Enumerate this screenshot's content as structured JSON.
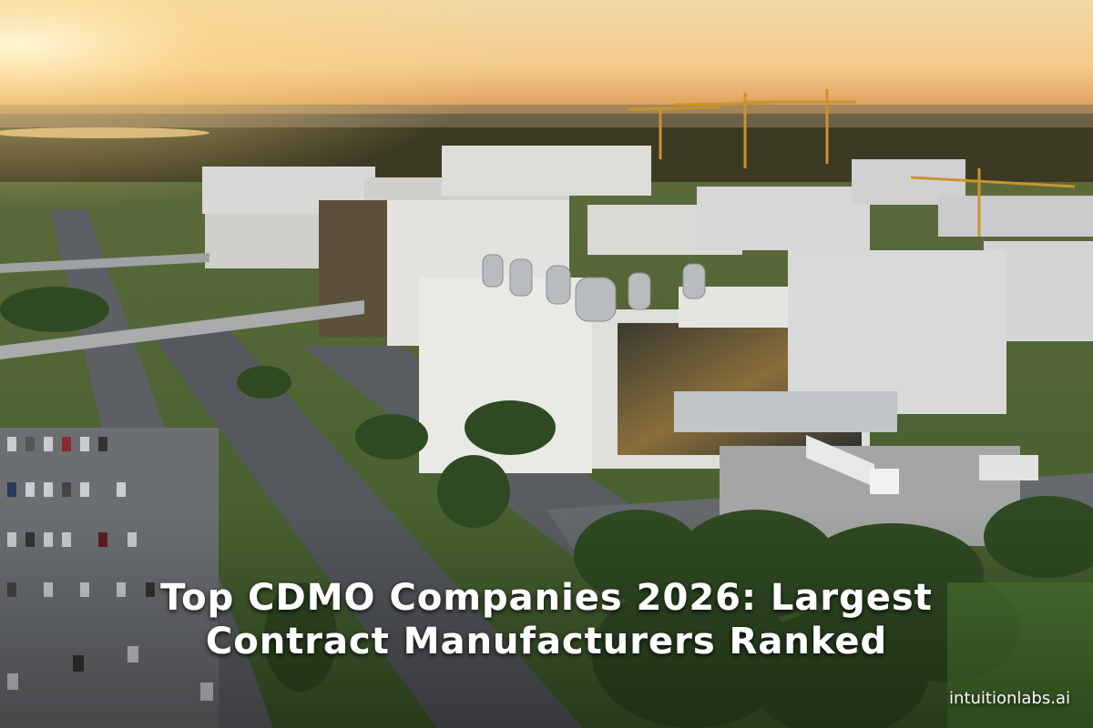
{
  "title": {
    "lines": [
      "Top CDMO Companies 2026: Largest",
      "Contract Manufacturers Ranked"
    ]
  },
  "watermark": "intuitionlabs.ai"
}
